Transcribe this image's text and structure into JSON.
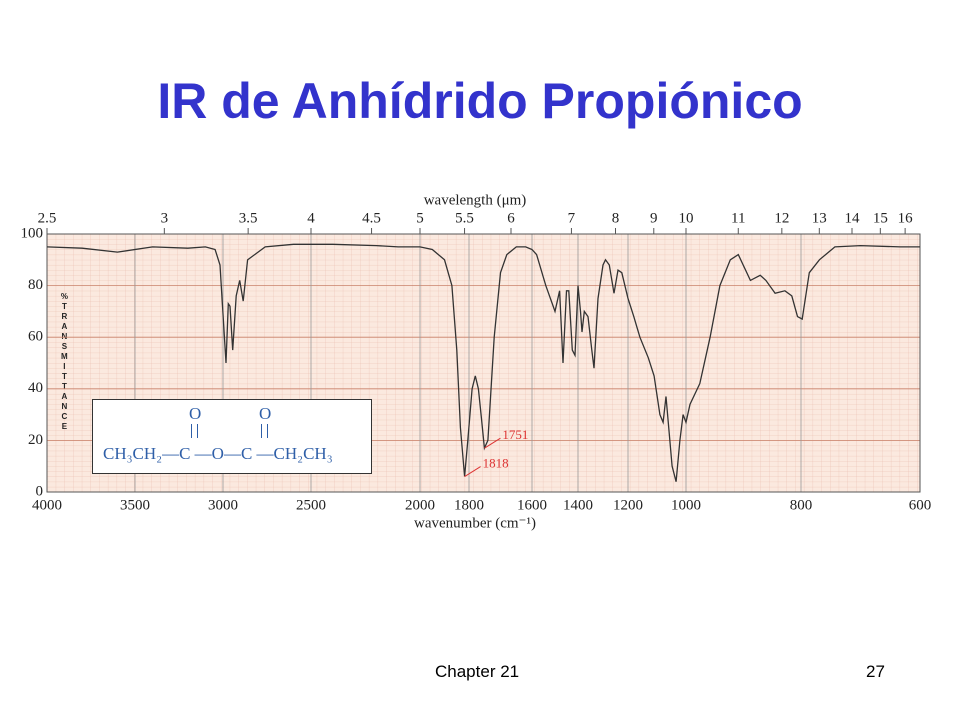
{
  "title": "IR de Anhídrido Propiónico",
  "footer": {
    "chapter": "Chapter 21",
    "page": "27"
  },
  "chart_data": {
    "type": "line",
    "xlabel": "wavenumber (cm⁻¹)",
    "x2label": "wavelength (μm)",
    "ylabel": "%TRANSMITTANCE",
    "color": "#333333",
    "xlim": [
      4000,
      600
    ],
    "xticks": [
      4000,
      3500,
      3000,
      2500,
      2000,
      1800,
      1600,
      1400,
      1200,
      1000,
      800,
      600
    ],
    "x2ticks": [
      2.5,
      3,
      3.5,
      4,
      4.5,
      5,
      5.5,
      6,
      7,
      8,
      9,
      10,
      11,
      12,
      13,
      14,
      15,
      16
    ],
    "ylim": [
      0,
      100
    ],
    "yticks": [
      0,
      20,
      40,
      60,
      80,
      100
    ],
    "grid": true,
    "x": [
      4000,
      3800,
      3600,
      3400,
      3200,
      3100,
      3045,
      3017,
      2983,
      2970,
      2960,
      2945,
      2925,
      2905,
      2885,
      2860,
      2820,
      2760,
      2600,
      2400,
      2200,
      2100,
      2000,
      1950,
      1900,
      1870,
      1850,
      1835,
      1818,
      1805,
      1790,
      1780,
      1770,
      1760,
      1751,
      1740,
      1720,
      1700,
      1680,
      1650,
      1620,
      1600,
      1580,
      1540,
      1500,
      1480,
      1465,
      1450,
      1440,
      1425,
      1413,
      1400,
      1390,
      1384,
      1375,
      1360,
      1345,
      1336,
      1320,
      1300,
      1290,
      1275,
      1256,
      1240,
      1225,
      1200,
      1180,
      1159,
      1130,
      1110,
      1090,
      1079,
      1069,
      1048,
      1034,
      1021,
      1010,
      1000,
      993,
      976,
      958,
      941,
      923,
      909,
      888,
      871,
      861,
      845,
      828,
      816,
      806,
      798,
      786,
      769,
      743,
      700,
      633,
      600
    ],
    "values": [
      95,
      94.5,
      93,
      95,
      94.5,
      95,
      94,
      88,
      50,
      73,
      72,
      55,
      76,
      82,
      74,
      90,
      92,
      95,
      96,
      96,
      95.5,
      95,
      95,
      94,
      90,
      80,
      55,
      25,
      6,
      20,
      40,
      45,
      40,
      28,
      17,
      20,
      60,
      85,
      92,
      95,
      95,
      94,
      92,
      80,
      70,
      78,
      50,
      78,
      78,
      55,
      53,
      80,
      70,
      62,
      70,
      68,
      55,
      48,
      75,
      88,
      90,
      88,
      77,
      86,
      85,
      75,
      68,
      60,
      52,
      45,
      30,
      27,
      37,
      10,
      4,
      20,
      30,
      27,
      34,
      42,
      60,
      80,
      90,
      92,
      82,
      84,
      82,
      77,
      78,
      76,
      68,
      67,
      85,
      90,
      95,
      95.5,
      95,
      95
    ],
    "annotations": [
      {
        "label": "1751",
        "x": 1751,
        "y": 17
      },
      {
        "label": "1818",
        "x": 1818,
        "y": 6
      }
    ],
    "structure": {
      "formula": "CH₃CH₂—C —O—C —CH₂CH₃",
      "oxygens": [
        "O",
        "O"
      ]
    }
  }
}
